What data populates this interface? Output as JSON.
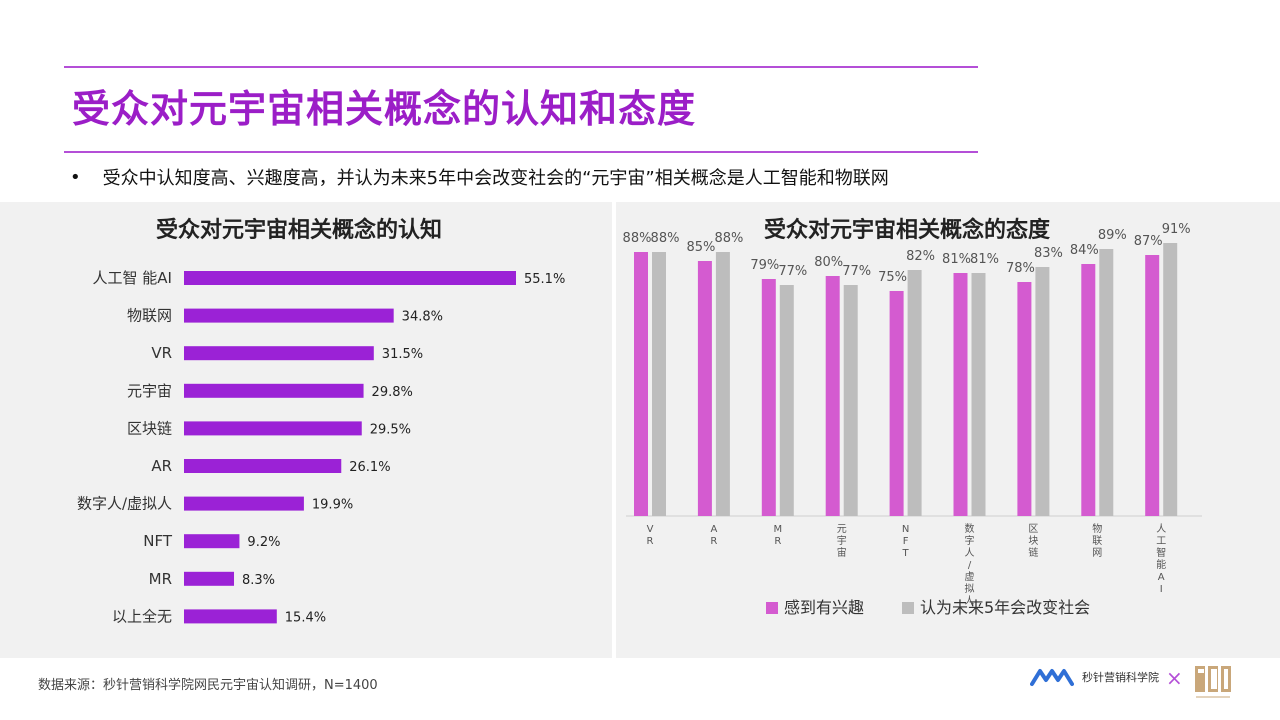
{
  "title": "受众对元宇宙相关概念的认知和态度",
  "bullet": {
    "symbol": "•",
    "text": "受众中认知度高、兴趣度高，并认为未来5年中会改变社会的“元宇宙”相关概念是人工智能和物联网"
  },
  "footer": {
    "source": "数据来源：秒针营销科学院网民元宇宙认知调研，N=1400",
    "brand_name": "秒针营销科学院",
    "separator": "×"
  },
  "colors": {
    "title": "#9b1ec7",
    "bar_purple": "#9b22d6",
    "interest": "#d45bd0",
    "change": "#bdbdbd",
    "panel_bg": "#f1f1f1"
  },
  "chart_data": [
    {
      "type": "bar",
      "orientation": "horizontal",
      "title": "受众对元宇宙相关概念的认知",
      "categories": [
        "人工智 能AI",
        "物联网",
        "VR",
        "元宇宙",
        "区块链",
        "AR",
        "数字人/虚拟人",
        "NFT",
        "MR",
        "以上全无"
      ],
      "values": [
        55.1,
        34.8,
        31.5,
        29.8,
        29.5,
        26.1,
        19.9,
        9.2,
        8.3,
        15.4
      ],
      "value_labels": [
        "55.1%",
        "34.8%",
        "31.5%",
        "29.8%",
        "29.5%",
        "26.1%",
        "19.9%",
        "9.2%",
        "8.3%",
        "15.4%"
      ],
      "xlim": [
        0,
        55.1
      ],
      "grid": false
    },
    {
      "type": "bar",
      "orientation": "vertical",
      "title": "受众对元宇宙相关概念的态度",
      "categories": [
        "VR",
        "AR",
        "MR",
        "元宇宙",
        "NFT",
        "数字人/虚拟人",
        "区块链",
        "物联网",
        "人工智能AI"
      ],
      "series": [
        {
          "name": "感到有兴趣",
          "values": [
            88,
            85,
            79,
            80,
            75,
            81,
            78,
            84,
            87
          ],
          "labels": [
            "88%",
            "85%",
            "79%",
            "80%",
            "75%",
            "81%",
            "78%",
            "84%",
            "87%"
          ]
        },
        {
          "name": "认为未来5年会改变社会",
          "values": [
            88,
            88,
            77,
            77,
            82,
            81,
            83,
            89,
            91
          ],
          "labels": [
            "88%",
            "88%",
            "77%",
            "77%",
            "82%",
            "81%",
            "83%",
            "89%",
            "91%"
          ]
        }
      ],
      "ylim": [
        0,
        100
      ],
      "legend": "bottom",
      "grid": false
    }
  ]
}
